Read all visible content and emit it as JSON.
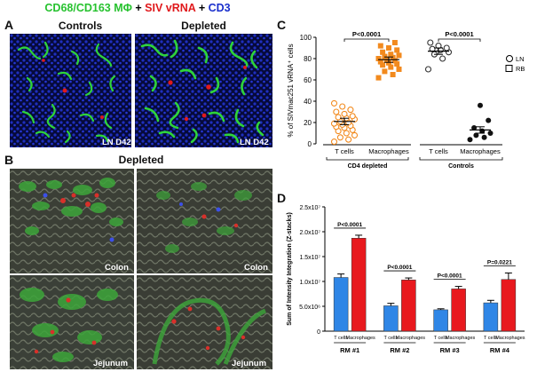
{
  "title": {
    "part1": "CD68/CD163 MΦ",
    "plus1": " + ",
    "part2": "SIV vRNA",
    "plus2": " + ",
    "part3": "CD3"
  },
  "panels": {
    "a": {
      "letter": "A",
      "col_left": "Controls",
      "col_right": "Depleted",
      "tag": "LN D42"
    },
    "b": {
      "letter": "B",
      "heading": "Depleted",
      "row1_tag": "Colon",
      "row2_tag": "Jejunum"
    },
    "c": {
      "letter": "C"
    },
    "d": {
      "letter": "D"
    }
  },
  "colors": {
    "green": "#27c22f",
    "red": "#e0191c",
    "blue": "#1a2fcc",
    "orange": "#f28a1e",
    "bar_blue": "#2f86e6",
    "bar_red": "#e8191e"
  },
  "chart_data": [
    {
      "type": "scatter",
      "panel": "C",
      "ylabel": "% of SIVmac251 vRNA⁺ cells",
      "ylim": [
        0,
        100
      ],
      "yticks": [
        0,
        20,
        40,
        60,
        80,
        100
      ],
      "categories": [
        "T cells",
        "Macrophages",
        "T cells",
        "Macrophages"
      ],
      "group_labels": [
        "CD4 depleted",
        "Controls"
      ],
      "legend": [
        {
          "marker": "circle",
          "label": "LN"
        },
        {
          "marker": "square",
          "label": "RB"
        }
      ],
      "comparisons": [
        {
          "label": "P<0.0001",
          "between": [
            0,
            1
          ]
        },
        {
          "label": "P<0.0001",
          "between": [
            2,
            3
          ]
        }
      ],
      "series": [
        {
          "category": "T cells",
          "group": "CD4 depleted",
          "marker": "open-circle",
          "color": "#f28a1e",
          "mean": 21,
          "sem": 3,
          "values": [
            2,
            4,
            6,
            8,
            10,
            12,
            13,
            15,
            16,
            17,
            18,
            19,
            20,
            21,
            23,
            24,
            25,
            26,
            28,
            30,
            32,
            35,
            38
          ]
        },
        {
          "category": "Macrophages",
          "group": "CD4 depleted",
          "marker": "filled-square",
          "color": "#f28a1e",
          "mean": 79,
          "sem": 2.5,
          "values": [
            62,
            65,
            68,
            70,
            72,
            74,
            75,
            76,
            77,
            78,
            79,
            80,
            81,
            82,
            83,
            84,
            86,
            88,
            90,
            92,
            95
          ]
        },
        {
          "category": "T cells",
          "group": "Controls",
          "marker": "open-circle",
          "color": "#333333",
          "mean": 87,
          "sem": 3,
          "values": [
            70,
            80,
            84,
            86,
            88,
            89,
            90,
            92,
            95
          ]
        },
        {
          "category": "Macrophages",
          "group": "Controls",
          "marker": "filled-circle",
          "color": "#111111",
          "mean": 13,
          "sem": 3,
          "values": [
            4,
            6,
            8,
            10,
            12,
            15,
            22,
            36
          ]
        }
      ]
    },
    {
      "type": "bar",
      "panel": "D",
      "ylabel": "Sum of Intensity Integration (Z-stacks)",
      "ylim": [
        0,
        25000000
      ],
      "yticks": [
        "0",
        "5.0x10⁶",
        "1.0x10⁷",
        "1.5x10⁷",
        "2.0x10⁷",
        "2.5x10⁷"
      ],
      "ytick_values": [
        0,
        5000000,
        10000000,
        15000000,
        20000000,
        25000000
      ],
      "groups": [
        {
          "name": "RM #1",
          "pvalue": "P<0.0001",
          "tcells": 10800000,
          "tcells_err": 700000,
          "macrophages": 18700000,
          "macrophages_err": 600000
        },
        {
          "name": "RM #2",
          "pvalue": "P<0.0001",
          "tcells": 5100000,
          "tcells_err": 500000,
          "macrophages": 10300000,
          "macrophages_err": 400000
        },
        {
          "name": "RM #3",
          "pvalue": "P<0.0001",
          "tcells": 4300000,
          "tcells_err": 200000,
          "macrophages": 8500000,
          "macrophages_err": 500000
        },
        {
          "name": "RM #4",
          "pvalue": "P=0.0221",
          "tcells": 5700000,
          "tcells_err": 500000,
          "macrophages": 10400000,
          "macrophages_err": 1300000
        }
      ],
      "bar_labels": [
        "T cells",
        "Macrophages"
      ]
    }
  ]
}
